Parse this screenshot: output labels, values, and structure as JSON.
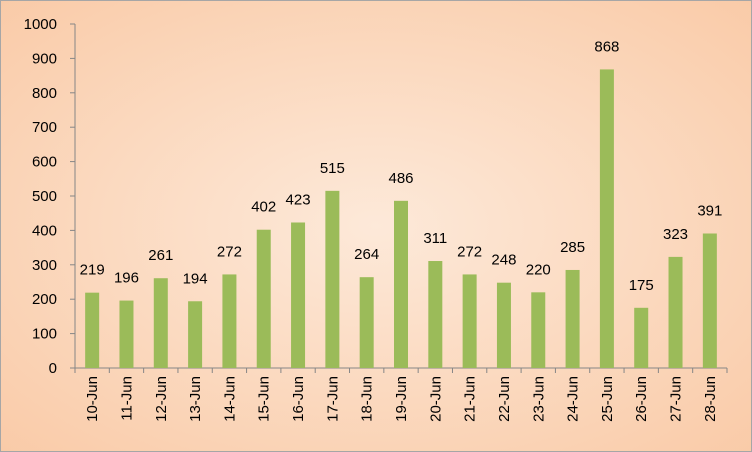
{
  "chart_data": {
    "type": "bar",
    "categories": [
      "10-Jun",
      "11-Jun",
      "12-Jun",
      "13-Jun",
      "14-Jun",
      "15-Jun",
      "16-Jun",
      "17-Jun",
      "18-Jun",
      "19-Jun",
      "20-Jun",
      "21-Jun",
      "22-Jun",
      "23-Jun",
      "24-Jun",
      "25-Jun",
      "26-Jun",
      "27-Jun",
      "28-Jun"
    ],
    "values": [
      219,
      196,
      261,
      194,
      272,
      402,
      423,
      515,
      264,
      486,
      311,
      272,
      248,
      220,
      285,
      868,
      175,
      323,
      391
    ],
    "color": "#9bbb59",
    "ylim": [
      0,
      1000
    ],
    "yticks": [
      0,
      100,
      200,
      300,
      400,
      500,
      600,
      700,
      800,
      900,
      1000
    ],
    "grid": false
  }
}
